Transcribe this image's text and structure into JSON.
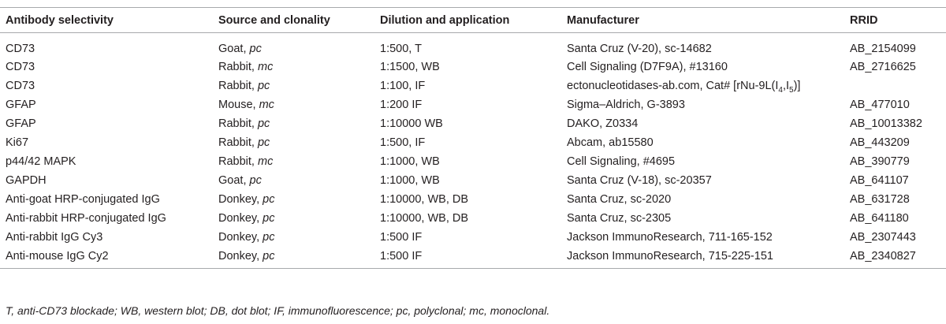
{
  "table": {
    "headers": [
      "Antibody selectivity",
      "Source and clonality",
      "Dilution and application",
      "Manufacturer",
      "RRID"
    ],
    "rows": [
      {
        "selectivity": "CD73",
        "species": "Goat",
        "clonality": "pc",
        "dilution": "1:500, T",
        "manufacturer": "Santa Cruz (V-20), sc-14682",
        "rrid": "AB_2154099"
      },
      {
        "selectivity": "CD73",
        "species": "Rabbit",
        "clonality": "mc",
        "dilution": "1:1500, WB",
        "manufacturer": "Cell Signaling (D7F9A), #13160",
        "rrid": "AB_2716625"
      },
      {
        "selectivity": "CD73",
        "species": "Rabbit",
        "clonality": "pc",
        "dilution": "1:100, IF",
        "manufacturer": "ectonucleotidases-ab.com, Cat# [rNu-9L(I",
        "manufacturer_sub1": "4",
        "manufacturer_mid": ",I",
        "manufacturer_sub2": "5",
        "manufacturer_end": ")]",
        "rrid": ""
      },
      {
        "selectivity": "GFAP",
        "species": "Mouse",
        "clonality": "mc",
        "dilution": "1:200 IF",
        "manufacturer": "Sigma–Aldrich, G-3893",
        "rrid": "AB_477010"
      },
      {
        "selectivity": "GFAP",
        "species": "Rabbit",
        "clonality": "pc",
        "dilution": "1:10000 WB",
        "manufacturer": "DAKO, Z0334",
        "rrid": "AB_10013382"
      },
      {
        "selectivity": "Ki67",
        "species": "Rabbit",
        "clonality": "pc",
        "dilution": "1:500, IF",
        "manufacturer": "Abcam, ab15580",
        "rrid": "AB_443209"
      },
      {
        "selectivity": "p44/42 MAPK",
        "species": "Rabbit",
        "clonality": "mc",
        "dilution": "1:1000, WB",
        "manufacturer": "Cell Signaling, #4695",
        "rrid": "AB_390779"
      },
      {
        "selectivity": "GAPDH",
        "species": "Goat",
        "clonality": "pc",
        "dilution": "1:1000, WB",
        "manufacturer": "Santa Cruz (V-18), sc-20357",
        "rrid": "AB_641107"
      },
      {
        "selectivity": "Anti-goat HRP-conjugated IgG",
        "species": "Donkey",
        "clonality": "pc",
        "dilution": "1:10000, WB, DB",
        "manufacturer": "Santa Cruz, sc-2020",
        "rrid": "AB_631728"
      },
      {
        "selectivity": "Anti-rabbit HRP-conjugated IgG",
        "species": "Donkey",
        "clonality": "pc",
        "dilution": "1:10000, WB, DB",
        "manufacturer": "Santa Cruz, sc-2305",
        "rrid": "AB_641180"
      },
      {
        "selectivity": "Anti-rabbit IgG Cy3",
        "species": "Donkey",
        "clonality": "pc",
        "dilution": "1:500 IF",
        "manufacturer": "Jackson ImmunoResearch, 711-165-152",
        "rrid": "AB_2307443"
      },
      {
        "selectivity": "Anti-mouse IgG Cy2",
        "species": "Donkey",
        "clonality": "pc",
        "dilution": "1:500 IF",
        "manufacturer": "Jackson ImmunoResearch, 715-225-151",
        "rrid": "AB_2340827"
      }
    ]
  },
  "footnote": "T, anti-CD73 blockade; WB, western blot; DB, dot blot; IF, immunofluorescence; pc, polyclonal; mc, monoclonal.",
  "colors": {
    "text": "#231f20",
    "rule": "#a7a9ac"
  }
}
